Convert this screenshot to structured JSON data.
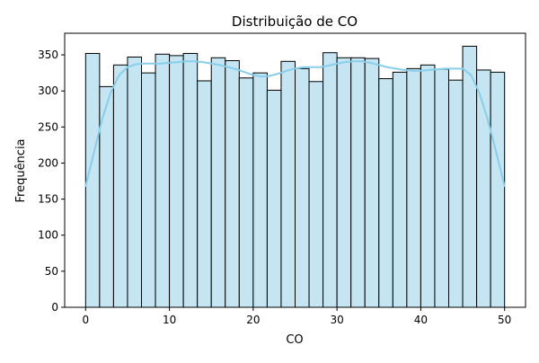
{
  "chart_data": {
    "type": "bar",
    "title": "Distribuição de CO",
    "xlabel": "CO",
    "ylabel": "Frequência",
    "xlim": [
      -2.5,
      52.5
    ],
    "ylim": [
      0,
      380
    ],
    "xticks": [
      0,
      10,
      20,
      30,
      40,
      50
    ],
    "yticks": [
      0,
      50,
      100,
      150,
      200,
      250,
      300,
      350
    ],
    "bin_edges": [
      0,
      1.667,
      3.333,
      5,
      6.667,
      8.333,
      10,
      11.667,
      13.333,
      15,
      16.667,
      18.333,
      20,
      21.667,
      23.333,
      25,
      26.667,
      28.333,
      30,
      31.667,
      33.333,
      35,
      36.667,
      38.333,
      40,
      41.667,
      43.333,
      45,
      46.667,
      48.333,
      50
    ],
    "values": [
      352,
      306,
      336,
      347,
      325,
      351,
      349,
      352,
      314,
      346,
      342,
      318,
      325,
      301,
      341,
      331,
      313,
      353,
      346,
      346,
      345,
      317,
      326,
      331,
      336,
      330,
      315,
      362,
      329,
      326
    ],
    "kde": {
      "x": [
        0,
        1,
        2,
        3,
        4,
        5,
        6,
        7,
        8,
        9,
        10,
        11,
        12,
        13,
        14,
        15,
        16,
        17,
        18,
        19,
        20,
        21,
        22,
        23,
        24,
        25,
        26,
        27,
        28,
        29,
        30,
        31,
        32,
        33,
        34,
        35,
        36,
        37,
        38,
        39,
        40,
        41,
        42,
        43,
        44,
        45,
        46,
        47,
        48,
        49,
        50
      ],
      "y": [
        168,
        215,
        262,
        298,
        322,
        333,
        337,
        338,
        338,
        338,
        339,
        340,
        341,
        341,
        340,
        338,
        336,
        333,
        330,
        326,
        322,
        320,
        321,
        324,
        328,
        331,
        333,
        333,
        333,
        335,
        338,
        340,
        341,
        341,
        339,
        336,
        333,
        331,
        329,
        328,
        328,
        329,
        330,
        331,
        331,
        331,
        322,
        297,
        260,
        215,
        168
      ]
    },
    "bar_color": "#c5e5f2",
    "bar_edge_color": "#000000",
    "kde_color": "#87ceeb",
    "grid": false,
    "legend": "none"
  }
}
